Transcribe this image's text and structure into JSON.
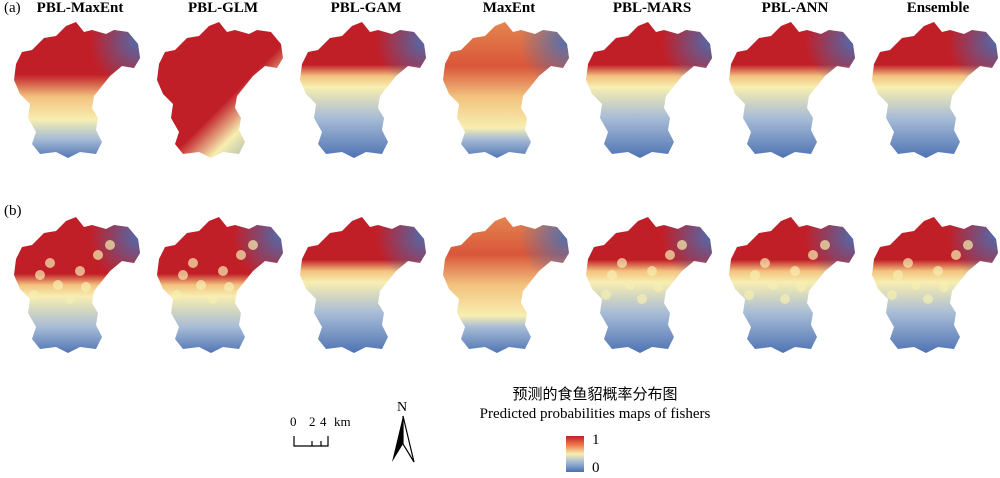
{
  "panels": {
    "a_label": "(a)",
    "b_label": "(b)"
  },
  "models": [
    "PBL-MaxEnt",
    "PBL-GLM",
    "PBL-GAM",
    "MaxEnt",
    "PBL-MARS",
    "PBL-ANN",
    "Ensemble"
  ],
  "legend": {
    "title_cn": "预测的食鱼貂概率分布图",
    "title_en": "Predicted probabilities maps of fishers",
    "max_label": "1",
    "min_label": "0",
    "colors": {
      "high": "#c11f28",
      "mid": "#f7eeb0",
      "low": "#4a6fb2"
    }
  },
  "scale_bar": {
    "ticks": [
      "0",
      "2",
      "4"
    ],
    "unit": "km"
  },
  "north_arrow": {
    "label": "N"
  },
  "map_style": {
    "a": [
      {
        "high_extent": 0.55,
        "transition": "smooth"
      },
      {
        "high_extent": 0.6,
        "transition": "diagonal"
      },
      {
        "high_extent": 0.4,
        "transition": "compact"
      },
      {
        "high_extent": 0.55,
        "transition": "diffuse"
      },
      {
        "high_extent": 0.4,
        "transition": "compact"
      },
      {
        "high_extent": 0.4,
        "transition": "compact"
      },
      {
        "high_extent": 0.4,
        "transition": "compact"
      }
    ],
    "b": [
      {
        "high_extent": 0.5,
        "transition": "patchy"
      },
      {
        "high_extent": 0.5,
        "transition": "patchy"
      },
      {
        "high_extent": 0.4,
        "transition": "compact"
      },
      {
        "high_extent": 0.5,
        "transition": "diffuse"
      },
      {
        "high_extent": 0.4,
        "transition": "patchy"
      },
      {
        "high_extent": 0.4,
        "transition": "patchy"
      },
      {
        "high_extent": 0.4,
        "transition": "patchy"
      }
    ]
  }
}
